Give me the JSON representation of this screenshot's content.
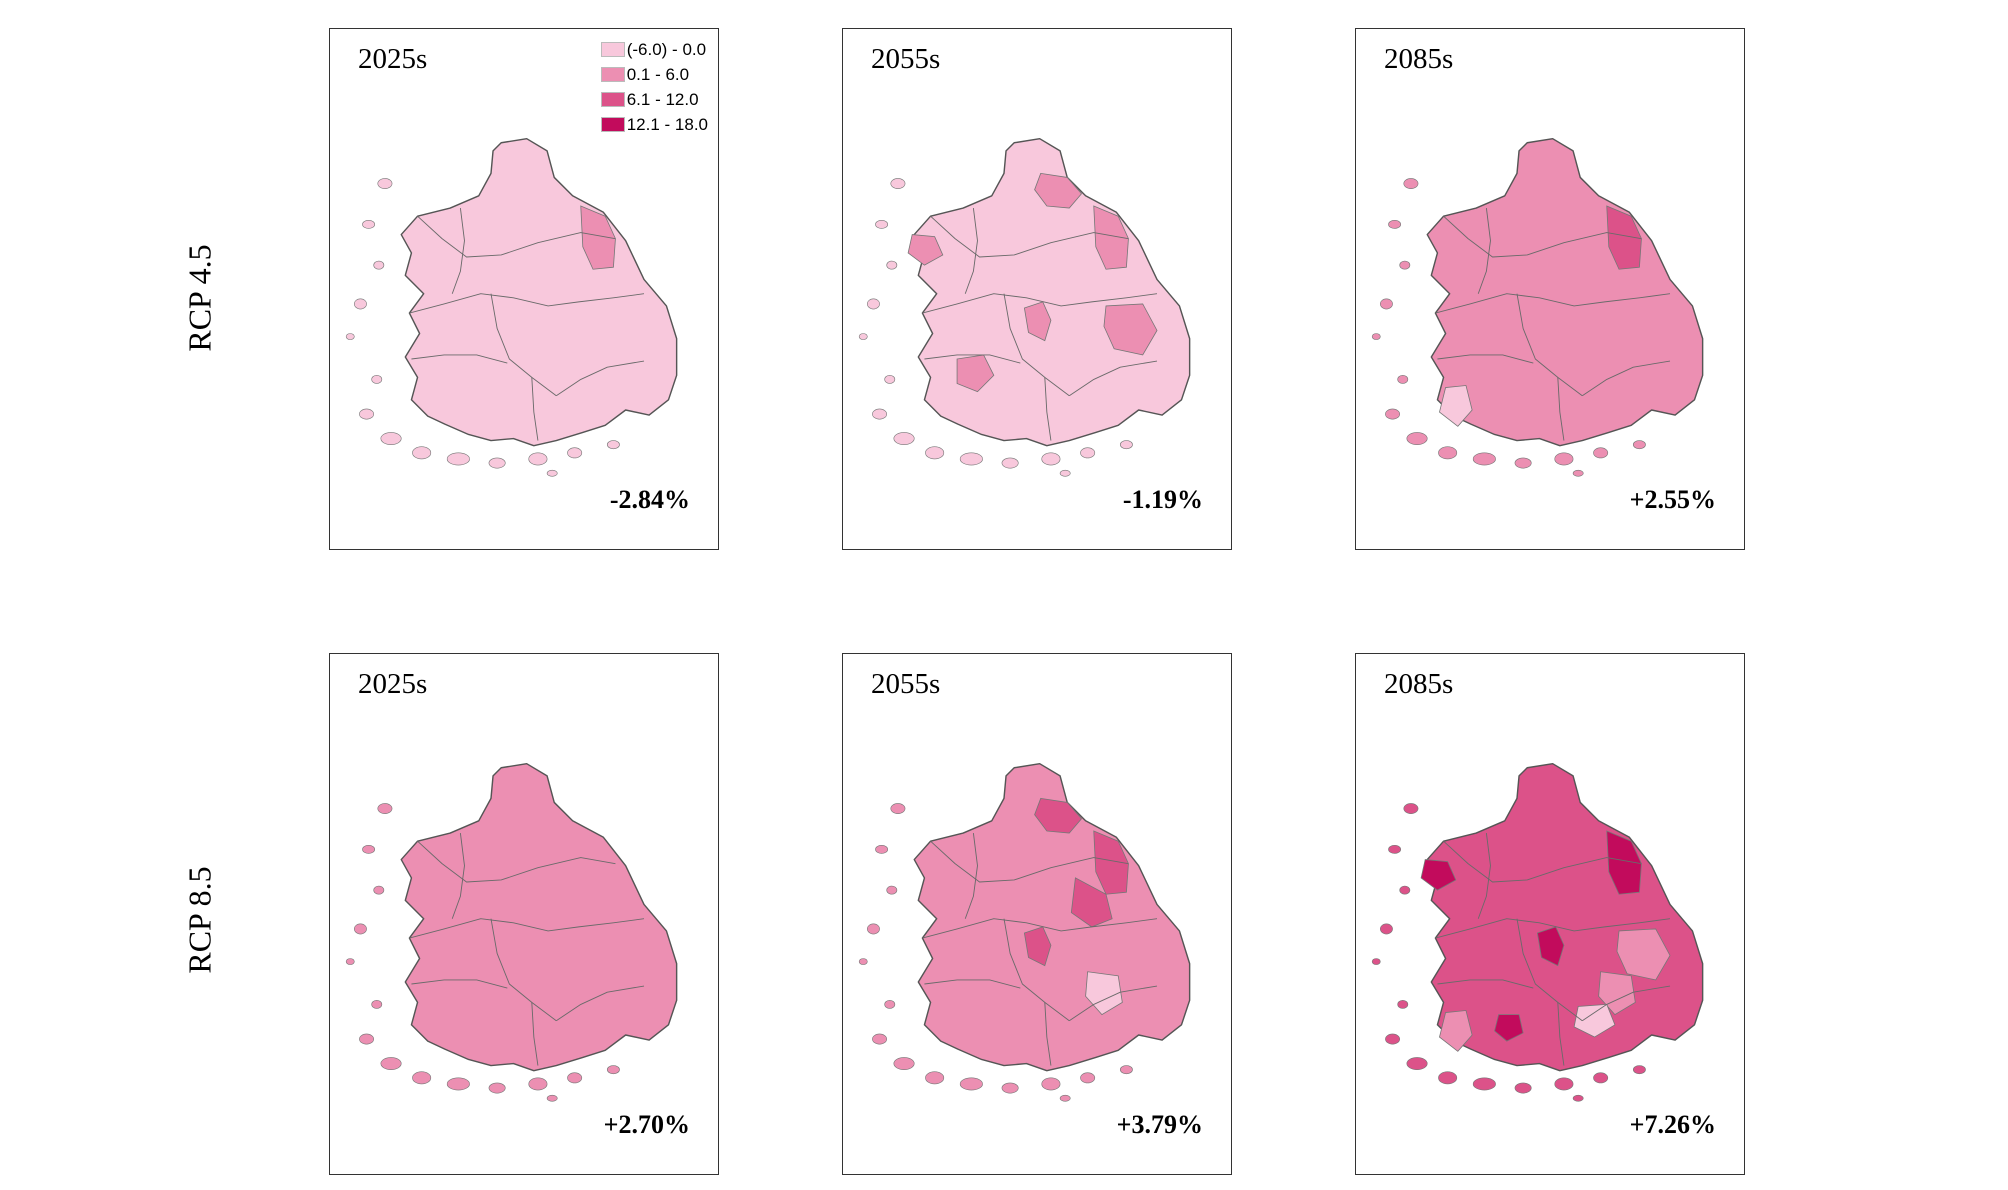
{
  "figure": {
    "rows": [
      {
        "label": "RCP 4.5"
      },
      {
        "label": "RCP 8.5"
      }
    ],
    "legend": [
      {
        "label": "(-6.0) - 0.0",
        "color": "#f8c8dc"
      },
      {
        "label": "0.1 - 6.0",
        "color": "#ec8fb2"
      },
      {
        "label": "6.1 - 12.0",
        "color": "#dc5289"
      },
      {
        "label": "12.1 - 18.0",
        "color": "#c20b5c"
      }
    ],
    "panels": [
      {
        "scenario": "RCP 4.5",
        "period": "2025s",
        "change": "-2.84%",
        "base_class": 0,
        "patches": [
          {
            "class": 1,
            "region": "gangwon-east"
          }
        ]
      },
      {
        "scenario": "RCP 4.5",
        "period": "2055s",
        "change": "-1.19%",
        "base_class": 0,
        "patches": [
          {
            "class": 1,
            "region": "gangwon-north"
          },
          {
            "class": 1,
            "region": "gangwon-east"
          },
          {
            "class": 1,
            "region": "chungbuk"
          },
          {
            "class": 1,
            "region": "coast-west"
          },
          {
            "class": 1,
            "region": "jeonbuk"
          },
          {
            "class": 1,
            "region": "gyeongbuk-east"
          }
        ]
      },
      {
        "scenario": "RCP 4.5",
        "period": "2085s",
        "change": "+2.55%",
        "base_class": 1,
        "patches": [
          {
            "class": 2,
            "region": "gangwon-east"
          },
          {
            "class": 0,
            "region": "jeonnam-west"
          }
        ]
      },
      {
        "scenario": "RCP 8.5",
        "period": "2025s",
        "change": "+2.70%",
        "base_class": 1,
        "patches": []
      },
      {
        "scenario": "RCP 8.5",
        "period": "2055s",
        "change": "+3.79%",
        "base_class": 1,
        "patches": [
          {
            "class": 2,
            "region": "gangwon-north"
          },
          {
            "class": 2,
            "region": "gangwon-east"
          },
          {
            "class": 2,
            "region": "gyeongbuk-north"
          },
          {
            "class": 2,
            "region": "chungbuk"
          },
          {
            "class": 0,
            "region": "gyeongbuk-south"
          }
        ]
      },
      {
        "scenario": "RCP 8.5",
        "period": "2085s",
        "change": "+7.26%",
        "base_class": 2,
        "patches": [
          {
            "class": 3,
            "region": "gangwon-east"
          },
          {
            "class": 3,
            "region": "coast-west"
          },
          {
            "class": 3,
            "region": "chungbuk"
          },
          {
            "class": 3,
            "region": "jeonnam-south"
          },
          {
            "class": 1,
            "region": "gyeongbuk-east"
          },
          {
            "class": 1,
            "region": "gyeongbuk-south"
          },
          {
            "class": 0,
            "region": "gyeongnam"
          },
          {
            "class": 1,
            "region": "jeonnam-west"
          }
        ]
      }
    ]
  }
}
